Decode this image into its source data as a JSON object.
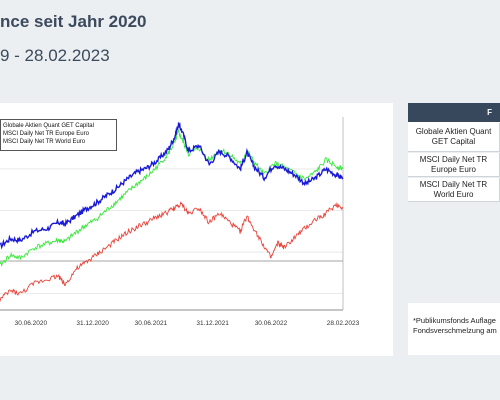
{
  "header": {
    "title": "nce seit Jahr 2020",
    "subtitle": "9 - 28.02.2023"
  },
  "legend": {
    "items": [
      {
        "label": "Globale Aktien Quant GET Capital",
        "color": "#1a1ad6"
      },
      {
        "label": "MSCI Daily Net TR Europe Euro",
        "color": "#e8453c"
      },
      {
        "label": "MSCI Daily Net TR World Euro",
        "color": "#39e63b"
      }
    ]
  },
  "table": {
    "header": "F",
    "rows": [
      {
        "label": "Globale Aktien Quant GET Capital"
      },
      {
        "label": "MSCI Daily Net TR Europe Euro"
      },
      {
        "label": "MSCI Daily Net TR World Euro"
      }
    ]
  },
  "note": {
    "line1": "*Publikumsfonds Auflage",
    "line2": "Fondsverschmelzung am"
  },
  "chart_data": {
    "type": "line",
    "x_ticks": [
      "30.06.2020",
      "31.12.2020",
      "30.06.2021",
      "31.12.2021",
      "30.06.2022",
      "28.02.2023"
    ],
    "series": [
      {
        "name": "Globale Aktien Quant GET Capital",
        "color": "#1a1ad6",
        "points": [
          [
            0,
            0.08
          ],
          [
            0.03,
            0.13
          ],
          [
            0.06,
            0.12
          ],
          [
            0.1,
            0.18
          ],
          [
            0.14,
            0.2
          ],
          [
            0.17,
            0.24
          ],
          [
            0.19,
            0.23
          ],
          [
            0.22,
            0.28
          ],
          [
            0.25,
            0.33
          ],
          [
            0.28,
            0.37
          ],
          [
            0.31,
            0.42
          ],
          [
            0.34,
            0.47
          ],
          [
            0.37,
            0.53
          ],
          [
            0.4,
            0.58
          ],
          [
            0.43,
            0.61
          ],
          [
            0.46,
            0.66
          ],
          [
            0.49,
            0.73
          ],
          [
            0.51,
            0.82
          ],
          [
            0.52,
            0.9
          ],
          [
            0.53,
            0.86
          ],
          [
            0.55,
            0.72
          ],
          [
            0.58,
            0.76
          ],
          [
            0.61,
            0.63
          ],
          [
            0.64,
            0.72
          ],
          [
            0.67,
            0.68
          ],
          [
            0.7,
            0.6
          ],
          [
            0.72,
            0.71
          ],
          [
            0.74,
            0.62
          ],
          [
            0.77,
            0.54
          ],
          [
            0.8,
            0.63
          ],
          [
            0.83,
            0.6
          ],
          [
            0.86,
            0.56
          ],
          [
            0.89,
            0.5
          ],
          [
            0.92,
            0.54
          ],
          [
            0.95,
            0.6
          ],
          [
            0.98,
            0.56
          ],
          [
            1.0,
            0.54
          ]
        ]
      },
      {
        "name": "MSCI Daily Net TR World Euro",
        "color": "#39e63b",
        "points": [
          [
            0,
            -0.05
          ],
          [
            0.03,
            0.02
          ],
          [
            0.06,
            0.0
          ],
          [
            0.1,
            0.07
          ],
          [
            0.14,
            0.1
          ],
          [
            0.17,
            0.12
          ],
          [
            0.19,
            0.11
          ],
          [
            0.22,
            0.17
          ],
          [
            0.25,
            0.22
          ],
          [
            0.28,
            0.26
          ],
          [
            0.31,
            0.32
          ],
          [
            0.34,
            0.38
          ],
          [
            0.37,
            0.44
          ],
          [
            0.4,
            0.5
          ],
          [
            0.43,
            0.55
          ],
          [
            0.46,
            0.62
          ],
          [
            0.49,
            0.7
          ],
          [
            0.51,
            0.78
          ],
          [
            0.52,
            0.85
          ],
          [
            0.53,
            0.8
          ],
          [
            0.55,
            0.7
          ],
          [
            0.58,
            0.74
          ],
          [
            0.61,
            0.66
          ],
          [
            0.64,
            0.73
          ],
          [
            0.67,
            0.7
          ],
          [
            0.7,
            0.63
          ],
          [
            0.72,
            0.72
          ],
          [
            0.74,
            0.65
          ],
          [
            0.77,
            0.56
          ],
          [
            0.8,
            0.64
          ],
          [
            0.83,
            0.61
          ],
          [
            0.86,
            0.57
          ],
          [
            0.89,
            0.53
          ],
          [
            0.92,
            0.58
          ],
          [
            0.95,
            0.66
          ],
          [
            0.98,
            0.62
          ],
          [
            1.0,
            0.6
          ]
        ]
      },
      {
        "name": "MSCI Daily Net TR Europe Euro",
        "color": "#e8453c",
        "points": [
          [
            0,
            -0.28
          ],
          [
            0.03,
            -0.22
          ],
          [
            0.06,
            -0.24
          ],
          [
            0.1,
            -0.17
          ],
          [
            0.14,
            -0.14
          ],
          [
            0.17,
            -0.12
          ],
          [
            0.19,
            -0.18
          ],
          [
            0.22,
            -0.08
          ],
          [
            0.25,
            -0.03
          ],
          [
            0.28,
            0.02
          ],
          [
            0.31,
            0.07
          ],
          [
            0.34,
            0.12
          ],
          [
            0.37,
            0.17
          ],
          [
            0.4,
            0.21
          ],
          [
            0.43,
            0.24
          ],
          [
            0.46,
            0.28
          ],
          [
            0.49,
            0.31
          ],
          [
            0.51,
            0.34
          ],
          [
            0.53,
            0.36
          ],
          [
            0.55,
            0.3
          ],
          [
            0.58,
            0.34
          ],
          [
            0.61,
            0.24
          ],
          [
            0.64,
            0.3
          ],
          [
            0.67,
            0.24
          ],
          [
            0.7,
            0.18
          ],
          [
            0.72,
            0.28
          ],
          [
            0.74,
            0.2
          ],
          [
            0.77,
            0.08
          ],
          [
            0.79,
            0.0
          ],
          [
            0.81,
            0.1
          ],
          [
            0.83,
            0.07
          ],
          [
            0.86,
            0.14
          ],
          [
            0.89,
            0.2
          ],
          [
            0.92,
            0.26
          ],
          [
            0.95,
            0.3
          ],
          [
            0.98,
            0.36
          ],
          [
            1.0,
            0.34
          ]
        ]
      }
    ]
  }
}
